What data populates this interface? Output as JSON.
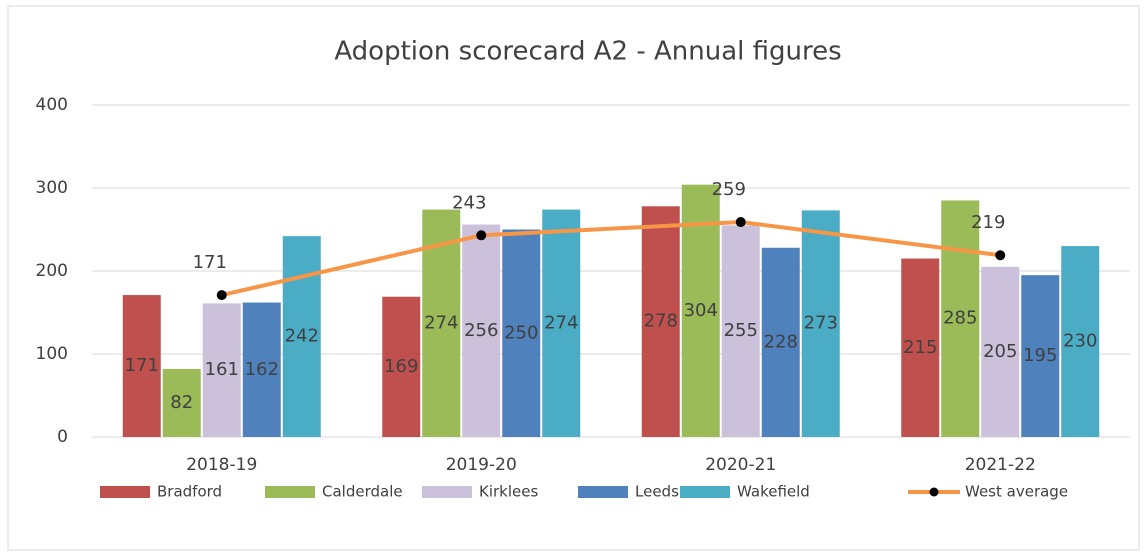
{
  "chart_data": {
    "type": "bar",
    "title": "Adoption scorecard A2 - Annual figures",
    "categories": [
      "2018-19",
      "2019-20",
      "2020-21",
      "2021-22"
    ],
    "series": [
      {
        "name": "Bradford",
        "color": "#c0504d",
        "values": [
          171,
          169,
          278,
          215
        ]
      },
      {
        "name": "Calderdale",
        "color": "#9bbb59",
        "values": [
          82,
          274,
          304,
          285
        ]
      },
      {
        "name": "Kirklees",
        "color": "#ccc1da",
        "values": [
          161,
          256,
          255,
          205
        ]
      },
      {
        "name": "Leeds",
        "color": "#4f81bd",
        "values": [
          162,
          250,
          228,
          195
        ]
      },
      {
        "name": "Wakefield",
        "color": "#4bacc6",
        "values": [
          242,
          274,
          273,
          230
        ]
      },
      {
        "name": "West average",
        "color": "#f79646",
        "type": "line",
        "marker_color": "#000000",
        "values": [
          171,
          243,
          259,
          219
        ]
      }
    ],
    "ylim": [
      0,
      400
    ],
    "yticks": [
      0,
      100,
      200,
      300,
      400
    ],
    "grid": true,
    "legend": "bottom"
  }
}
